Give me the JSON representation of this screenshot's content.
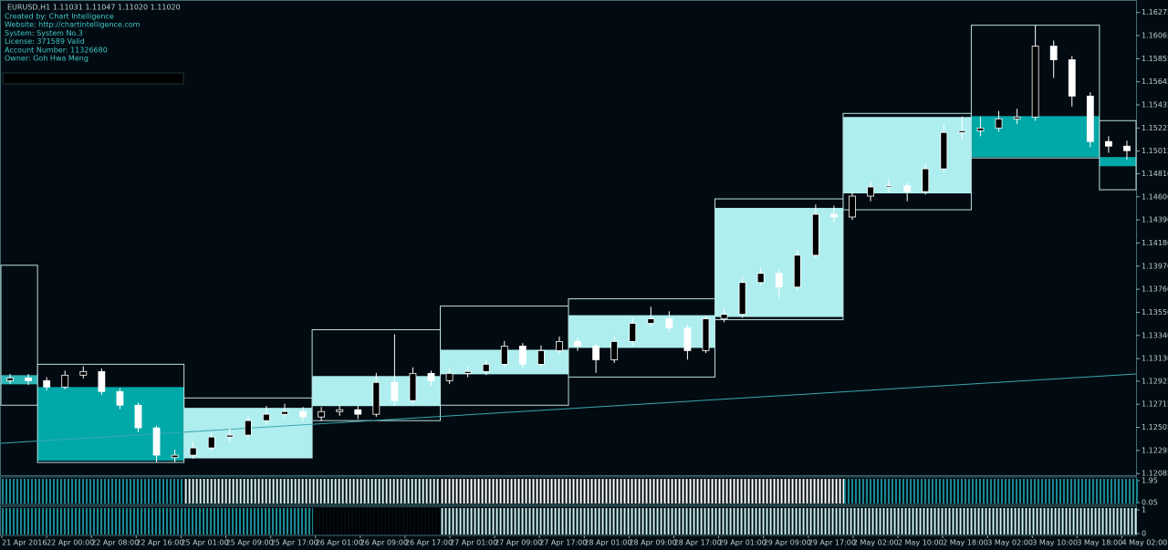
{
  "chart_data": {
    "type": "candlestick",
    "title": "EURUSD,H1  1.11031 1.11047 1.11020 1.11020",
    "info": [
      "Created by: Chart Intelligence",
      "Website: http://chartintelligence.com",
      "System: System No.3",
      "License: 371589 Valid",
      "Account Number: 11326680",
      "Owner: Goh Hwa Meng"
    ],
    "x_labels": [
      "21 Apr 2016",
      "22 Apr 00:00",
      "22 Apr 08:00",
      "22 Apr 16:00",
      "25 Apr 01:00",
      "25 Apr 09:00",
      "25 Apr 17:00",
      "26 Apr 01:00",
      "26 Apr 09:00",
      "26 Apr 17:00",
      "27 Apr 01:00",
      "27 Apr 09:00",
      "27 Apr 17:00",
      "28 Apr 01:00",
      "28 Apr 09:00",
      "28 Apr 17:00",
      "29 Apr 01:00",
      "29 Apr 09:00",
      "29 Apr 17:00",
      "2 May 02:00",
      "2 May 10:00",
      "2 May 18:00",
      "3 May 02:00",
      "3 May 10:00",
      "3 May 18:00",
      "4 May 02:00"
    ],
    "open": [
      1.12929,
      1.12954,
      1.12929,
      1.12871,
      1.12979,
      1.13012,
      1.1283,
      1.12706,
      1.125,
      1.1223,
      1.12252,
      1.12318,
      1.12417,
      1.12434,
      1.12566,
      1.12624,
      1.12648,
      1.12599,
      1.12648,
      1.12665,
      1.12624,
      1.12913,
      1.12748,
      1.12995,
      1.12929,
      1.12995,
      1.13012,
      1.13078,
      1.13243,
      1.13078,
      1.13202,
      1.13285,
      1.13243,
      1.13119,
      1.13285,
      1.1345,
      1.13491,
      1.13408,
      1.13202,
      1.13491,
      1.13532,
      1.13821,
      1.13904,
      1.1378,
      1.14069,
      1.14441,
      1.14416,
      1.14606,
      1.14689,
      1.147,
      1.14647,
      1.14854,
      1.15184,
      1.152,
      1.15225,
      1.15308,
      1.15325,
      1.15969,
      1.15845,
      1.15515,
      1.15102,
      1.1506
    ],
    "high": [
      1.1299,
      1.1299,
      1.1296,
      1.1302,
      1.1306,
      1.1304,
      1.1286,
      1.1273,
      1.1252,
      1.123,
      1.1238,
      1.1246,
      1.125,
      1.1261,
      1.127,
      1.1272,
      1.1269,
      1.1269,
      1.1271,
      1.127,
      1.13,
      1.1335,
      1.1305,
      1.1302,
      1.1304,
      1.1306,
      1.1312,
      1.1329,
      1.1327,
      1.1325,
      1.1333,
      1.1332,
      1.1327,
      1.1333,
      1.135,
      1.136,
      1.1356,
      1.1344,
      1.1352,
      1.1358,
      1.1387,
      1.1396,
      1.1394,
      1.1412,
      1.1453,
      1.1452,
      1.1465,
      1.1474,
      1.1476,
      1.1473,
      1.149,
      1.1526,
      1.1533,
      1.1533,
      1.1538,
      1.154,
      1.1616,
      1.1602,
      1.1588,
      1.1555,
      1.1515,
      1.1511
    ],
    "low": [
      1.129,
      1.1289,
      1.1284,
      1.1285,
      1.1295,
      1.128,
      1.1267,
      1.1246,
      1.1219,
      1.1219,
      1.1222,
      1.1229,
      1.1237,
      1.124,
      1.1253,
      1.1259,
      1.1256,
      1.1256,
      1.1261,
      1.1258,
      1.126,
      1.127,
      1.1272,
      1.1288,
      1.129,
      1.1296,
      1.1298,
      1.1305,
      1.1304,
      1.1305,
      1.1317,
      1.132,
      1.13,
      1.1309,
      1.1325,
      1.1342,
      1.1337,
      1.1312,
      1.1318,
      1.1346,
      1.135,
      1.1379,
      1.1368,
      1.1375,
      1.1404,
      1.1437,
      1.1439,
      1.1456,
      1.1464,
      1.1456,
      1.1462,
      1.1482,
      1.1512,
      1.1515,
      1.1519,
      1.1526,
      1.1529,
      1.1568,
      1.1542,
      1.1505,
      1.15,
      1.1494
    ],
    "close": [
      1.12954,
      1.12929,
      1.12871,
      1.12979,
      1.13012,
      1.1283,
      1.12706,
      1.125,
      1.12252,
      1.12252,
      1.12318,
      1.12417,
      1.12434,
      1.12566,
      1.12624,
      1.12648,
      1.12599,
      1.12648,
      1.12665,
      1.12624,
      1.12913,
      1.12748,
      1.12995,
      1.12929,
      1.12995,
      1.13012,
      1.13078,
      1.13243,
      1.13078,
      1.13202,
      1.13285,
      1.13243,
      1.13119,
      1.13285,
      1.1345,
      1.13491,
      1.13408,
      1.13202,
      1.13491,
      1.13532,
      1.13821,
      1.13904,
      1.1378,
      1.14069,
      1.14441,
      1.14416,
      1.14606,
      1.14689,
      1.147,
      1.14647,
      1.14854,
      1.15184,
      1.152,
      1.15225,
      1.15308,
      1.15325,
      1.15969,
      1.15845,
      1.15515,
      1.15102,
      1.1506,
      1.15019
    ],
    "bull_color": "#000000",
    "bear_color": "#ffffff",
    "wick_color": "#ffffff",
    "ylim": [
      1.1207,
      1.1638
    ],
    "yticks": [
      {
        "value": 1.16275,
        "label": "1.16275"
      },
      {
        "value": 1.16065,
        "label": "1.16065"
      },
      {
        "value": 1.15855,
        "label": "1.15855"
      },
      {
        "value": 1.15645,
        "label": "1.15645"
      },
      {
        "value": 1.15435,
        "label": "1.15435"
      },
      {
        "value": 1.15225,
        "label": "1.15225"
      },
      {
        "value": 1.15015,
        "label": "1.15015"
      },
      {
        "value": 1.1481,
        "label": "1.14810"
      },
      {
        "value": 1.146,
        "label": "1.14600"
      },
      {
        "value": 1.1439,
        "label": "1.14390"
      },
      {
        "value": 1.1418,
        "label": "1.14180"
      },
      {
        "value": 1.1397,
        "label": "1.13970"
      },
      {
        "value": 1.1376,
        "label": "1.13760"
      },
      {
        "value": 1.1355,
        "label": "1.13550"
      },
      {
        "value": 1.1334,
        "label": "1.13340"
      },
      {
        "value": 1.1313,
        "label": "1.13130"
      },
      {
        "value": 1.12925,
        "label": "1.12925"
      },
      {
        "value": 1.12715,
        "label": "1.12715"
      },
      {
        "value": 1.12505,
        "label": "1.12505"
      },
      {
        "value": 1.12295,
        "label": "1.12295"
      },
      {
        "value": 1.12085,
        "label": "1.12085"
      }
    ],
    "boxes": [
      {
        "start": 0,
        "end": 1,
        "top": 1.13978,
        "bottom": 1.12706,
        "fill_top": 1.12979,
        "fill_bottom": 1.12896,
        "color": "#2bb5b5"
      },
      {
        "start": 2,
        "end": 9,
        "top": 1.13078,
        "bottom": 1.12186,
        "fill_top": 1.12871,
        "fill_bottom": 1.12202,
        "color": "#00a8a8"
      },
      {
        "start": 10,
        "end": 16,
        "top": 1.12772,
        "bottom": 1.12227,
        "fill_top": 1.12682,
        "fill_bottom": 1.12227,
        "color": "#aeeeee"
      },
      {
        "start": 17,
        "end": 23,
        "top": 1.13392,
        "bottom": 1.12566,
        "fill_top": 1.12971,
        "fill_bottom": 1.12698,
        "color": "#aeeeee"
      },
      {
        "start": 24,
        "end": 30,
        "top": 1.13607,
        "bottom": 1.12706,
        "fill_top": 1.1321,
        "fill_bottom": 1.12987,
        "color": "#aeeeee"
      },
      {
        "start": 31,
        "end": 38,
        "top": 1.13673,
        "bottom": 1.12962,
        "fill_top": 1.13524,
        "fill_bottom": 1.13227,
        "color": "#aeeeee"
      },
      {
        "start": 39,
        "end": 45,
        "top": 1.14581,
        "bottom": 1.13483,
        "fill_top": 1.14499,
        "fill_bottom": 1.13508,
        "color": "#aeeeee"
      },
      {
        "start": 46,
        "end": 52,
        "top": 1.15358,
        "bottom": 1.14482,
        "fill_top": 1.15325,
        "fill_bottom": 1.14631,
        "color": "#aeeeee"
      },
      {
        "start": 53,
        "end": 59,
        "top": 1.16159,
        "bottom": 1.14953,
        "fill_top": 1.15333,
        "fill_bottom": 1.14961,
        "color": "#00a8a8"
      },
      {
        "start": 60,
        "end": 61,
        "top": 1.15292,
        "bottom": 1.14664,
        "fill_top": 1.14961,
        "fill_bottom": 1.14878,
        "color": "#00a8a8"
      }
    ],
    "trend_line": [
      1.1236,
      1.1299
    ],
    "panels": [
      {
        "ticks": [
          {
            "value": 1.95,
            "label": "1.95"
          },
          {
            "value": 0.05,
            "label": "0.05"
          }
        ],
        "segments": [
          {
            "from": 0,
            "to": 9,
            "color": "#1a8a94"
          },
          {
            "from": 10,
            "to": 23,
            "color": "#d8f4f4"
          },
          {
            "from": 24,
            "to": 45,
            "color": "#ffffff"
          },
          {
            "from": 46,
            "to": 61,
            "color": "#1a8a94"
          }
        ]
      },
      {
        "ticks": [
          {
            "value": 1,
            "label": "1"
          },
          {
            "value": 0,
            "label": "0"
          }
        ],
        "segments": [
          {
            "from": 0,
            "to": 16,
            "color": "#1a8a94"
          },
          {
            "from": 17,
            "to": 23,
            "color": "#000000"
          },
          {
            "from": 24,
            "to": 61,
            "color": "#c8f0f0"
          }
        ]
      }
    ]
  }
}
